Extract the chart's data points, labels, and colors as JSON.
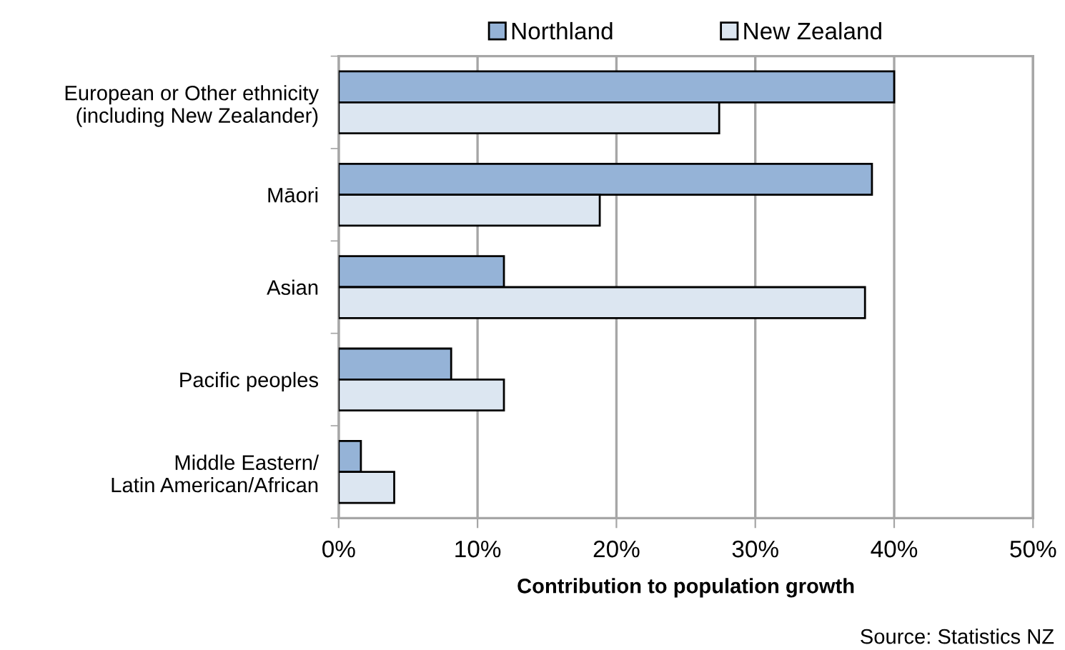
{
  "chart_data": {
    "type": "bar",
    "orientation": "horizontal",
    "categories": [
      "European or Other ethnicity\n(including New Zealander)",
      "Māori",
      "Asian",
      "Pacific peoples",
      "Middle Eastern/\nLatin American/African"
    ],
    "series": [
      {
        "name": "Northland",
        "color": "#95b3d7",
        "values": [
          40.0,
          38.4,
          11.9,
          8.1,
          1.6
        ]
      },
      {
        "name": "New Zealand",
        "color": "#dce6f1",
        "values": [
          27.4,
          18.8,
          37.9,
          11.9,
          4.0
        ]
      }
    ],
    "xlabel": "Contribution to population growth",
    "xlim": [
      0,
      50
    ],
    "xticks": [
      {
        "value": 0,
        "label": "0%"
      },
      {
        "value": 10,
        "label": "10%"
      },
      {
        "value": 20,
        "label": "20%"
      },
      {
        "value": 30,
        "label": "30%"
      },
      {
        "value": 40,
        "label": "40%"
      },
      {
        "value": 50,
        "label": "50%"
      }
    ],
    "grid": "x",
    "legend": "top",
    "annotations": [
      "Source: Statistics NZ"
    ]
  }
}
